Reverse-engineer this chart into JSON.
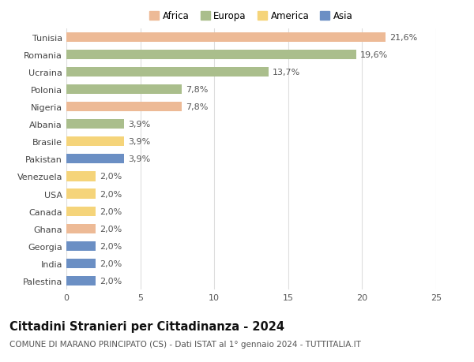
{
  "categories": [
    "Tunisia",
    "Romania",
    "Ucraina",
    "Polonia",
    "Nigeria",
    "Albania",
    "Brasile",
    "Pakistan",
    "Venezuela",
    "USA",
    "Canada",
    "Ghana",
    "Georgia",
    "India",
    "Palestina"
  ],
  "values": [
    21.6,
    19.6,
    13.7,
    7.8,
    7.8,
    3.9,
    3.9,
    3.9,
    2.0,
    2.0,
    2.0,
    2.0,
    2.0,
    2.0,
    2.0
  ],
  "labels": [
    "21,6%",
    "19,6%",
    "13,7%",
    "7,8%",
    "7,8%",
    "3,9%",
    "3,9%",
    "3,9%",
    "2,0%",
    "2,0%",
    "2,0%",
    "2,0%",
    "2,0%",
    "2,0%",
    "2,0%"
  ],
  "colors": [
    "#EDBA96",
    "#AABE8C",
    "#AABE8C",
    "#AABE8C",
    "#EDBA96",
    "#AABE8C",
    "#F5D47A",
    "#6B8FC4",
    "#F5D47A",
    "#F5D47A",
    "#F5D47A",
    "#EDBA96",
    "#6B8FC4",
    "#6B8FC4",
    "#6B8FC4"
  ],
  "legend_labels": [
    "Africa",
    "Europa",
    "America",
    "Asia"
  ],
  "legend_colors": [
    "#EDBA96",
    "#AABE8C",
    "#F5D47A",
    "#6B8FC4"
  ],
  "title": "Cittadini Stranieri per Cittadinanza - 2024",
  "subtitle": "COMUNE DI MARANO PRINCIPATO (CS) - Dati ISTAT al 1° gennaio 2024 - TUTTITALIA.IT",
  "xlim": [
    0,
    25
  ],
  "xticks": [
    0,
    5,
    10,
    15,
    20,
    25
  ],
  "background_color": "#ffffff",
  "grid_color": "#dddddd",
  "bar_height": 0.55,
  "label_fontsize": 8.0,
  "tick_fontsize": 8.0,
  "title_fontsize": 10.5,
  "subtitle_fontsize": 7.5
}
